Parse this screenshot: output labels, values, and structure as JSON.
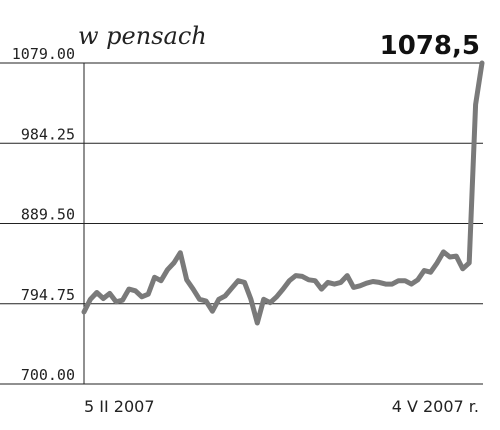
{
  "chart_data": {
    "type": "line",
    "unit_label": "w pensach",
    "last_value_label": "1078,5",
    "title": "",
    "xlabel": "",
    "ylabel": "",
    "x_tick_labels": [
      "5 II 2007",
      "4 V 2007 r."
    ],
    "y_tick_labels": [
      "1079.00",
      "984.25",
      "889.50",
      "794.75",
      "700.00"
    ],
    "y_ticks": [
      1079.0,
      984.25,
      889.5,
      794.75,
      700.0
    ],
    "ylim": [
      700.0,
      1079.0
    ],
    "grid": true,
    "legend": "none",
    "series": [
      {
        "color": "#7a7a7a",
        "values": [
          785,
          800,
          808,
          801,
          807,
          797,
          799,
          812,
          810,
          803,
          806,
          826,
          822,
          835,
          843,
          855,
          823,
          812,
          800,
          798,
          786,
          800,
          804,
          813,
          822,
          820,
          800,
          772,
          800,
          796,
          803,
          812,
          822,
          828,
          827,
          823,
          822,
          812,
          820,
          818,
          820,
          828,
          814,
          816,
          819,
          821,
          820,
          818,
          818,
          822,
          822,
          818,
          823,
          834,
          832,
          843,
          856,
          850,
          851,
          836,
          843,
          1030,
          1079
        ]
      }
    ]
  }
}
